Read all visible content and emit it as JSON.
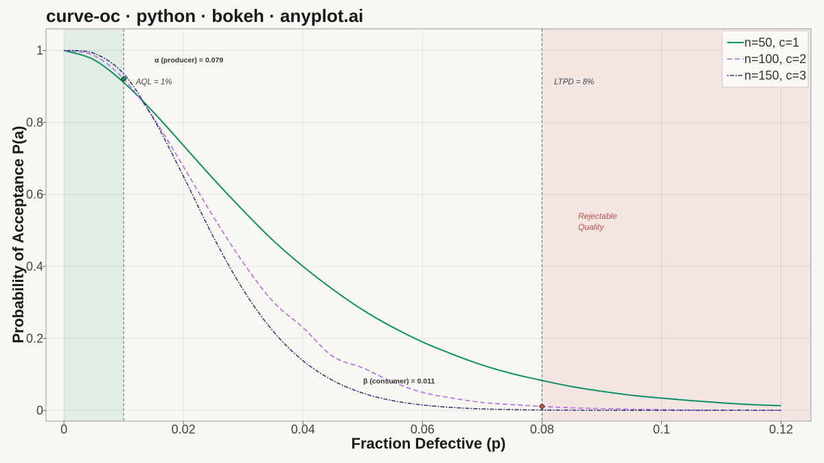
{
  "title": "curve-oc · python · bokeh · anyplot.ai",
  "chart_data": {
    "type": "line",
    "xlabel": "Fraction Defective (p)",
    "ylabel": "Probability of Acceptance P(a)",
    "xlim": [
      -0.003,
      0.125
    ],
    "ylim": [
      -0.03,
      1.06
    ],
    "x_ticks": [
      0,
      0.02,
      0.04,
      0.06,
      0.08,
      0.1,
      0.12
    ],
    "x_tick_labels": [
      "0",
      "0.02",
      "0.04",
      "0.06",
      "0.08",
      "0.1",
      "0.12"
    ],
    "y_ticks": [
      0,
      0.2,
      0.4,
      0.6,
      0.8,
      1
    ],
    "y_tick_labels": [
      "0",
      "0.2",
      "0.4",
      "0.6",
      "0.8",
      "1"
    ],
    "grid": true,
    "legend_position": "top-right",
    "x": [
      0,
      0.005,
      0.01,
      0.015,
      0.02,
      0.025,
      0.03,
      0.035,
      0.04,
      0.045,
      0.05,
      0.055,
      0.06,
      0.065,
      0.07,
      0.075,
      0.08,
      0.085,
      0.09,
      0.095,
      0.1,
      0.105,
      0.11,
      0.115,
      0.12
    ],
    "series": [
      {
        "name": "n=50, c=1",
        "color": "#0f8f62",
        "dash": "",
        "values": [
          1.0,
          0.974,
          0.911,
          0.828,
          0.736,
          0.643,
          0.555,
          0.472,
          0.4,
          0.336,
          0.279,
          0.231,
          0.19,
          0.156,
          0.126,
          0.102,
          0.083,
          0.066,
          0.053,
          0.042,
          0.034,
          0.027,
          0.021,
          0.016,
          0.013
        ]
      },
      {
        "name": "n=100, c=2",
        "color": "#b36ae8",
        "dash": "7,4",
        "values": [
          1.0,
          0.986,
          0.921,
          0.812,
          0.677,
          0.538,
          0.41,
          0.302,
          0.23,
          0.15,
          0.118,
          0.079,
          0.05,
          0.034,
          0.022,
          0.016,
          0.011,
          0.007,
          0.005,
          0.003,
          0.002,
          0.001,
          0.001,
          0.0005,
          0.0003
        ]
      },
      {
        "name": "n=150, c=3",
        "color": "#2c3e7a",
        "dash": "2,2,6,2",
        "values": [
          1.0,
          0.992,
          0.935,
          0.81,
          0.65,
          0.482,
          0.335,
          0.22,
          0.138,
          0.083,
          0.048,
          0.027,
          0.015,
          0.008,
          0.004,
          0.002,
          0.001,
          0.0005,
          0.0003,
          0.0001,
          0.0001,
          0.0,
          0.0,
          0.0,
          0.0
        ]
      }
    ],
    "shaded_regions": [
      {
        "from": 0,
        "to": 0.01,
        "color": "#0f8f62"
      },
      {
        "from": 0.08,
        "to": 0.125,
        "color": "#c0504d"
      }
    ],
    "reference_lines": [
      {
        "x": 0.01,
        "label": "AQL = 1%"
      },
      {
        "x": 0.08,
        "label": "LTPD = 8%"
      }
    ],
    "markers": [
      {
        "x": 0.01,
        "y": 0.921,
        "label": "α (producer) = 0.079",
        "color": "#0f8f62"
      },
      {
        "x": 0.08,
        "y": 0.011,
        "label": "β (consumer) = 0.011",
        "color": "#c0504d"
      }
    ],
    "region_label": "Rejectable Quality",
    "region_label_lines": [
      "Rejectable",
      "Quality"
    ]
  }
}
